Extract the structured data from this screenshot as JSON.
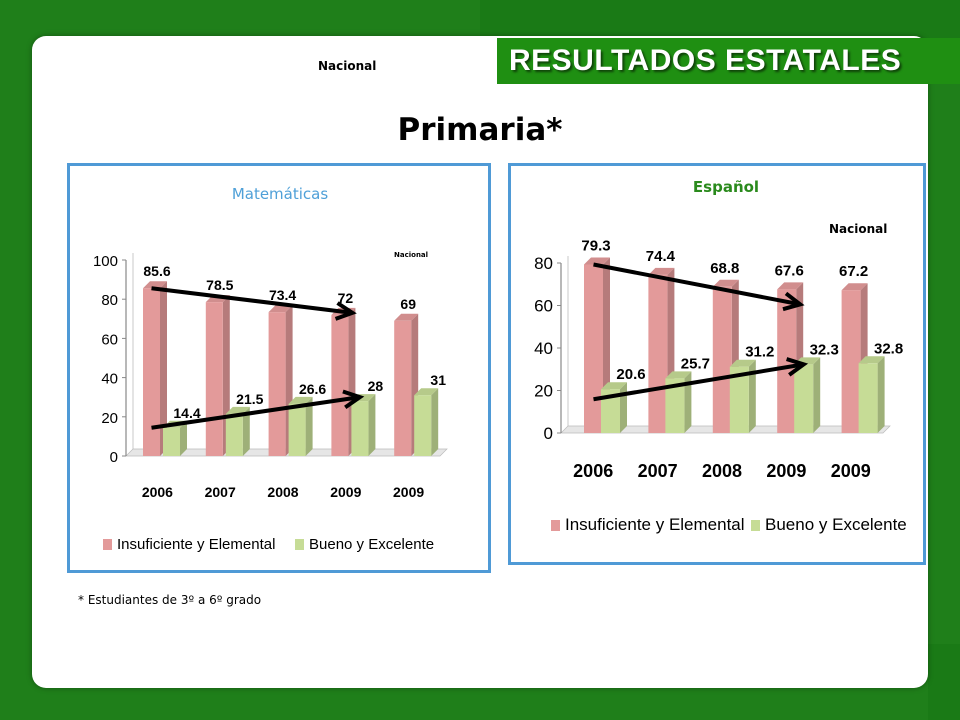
{
  "header": {
    "banner": "RESULTADOS ESTATALES",
    "nacional_label": "Nacional",
    "title": "Primaria*"
  },
  "footnote": "* Estudiantes de 3º a 6º grado",
  "colors": {
    "red": "#e39a9a",
    "green": "#c6dc96",
    "border": "#4f9ad6",
    "brand": "#1f8f12"
  },
  "chart_data": [
    {
      "type": "bar",
      "title": "Matemáticas",
      "annotation": "Nacional",
      "categories": [
        "2006",
        "2007",
        "2008",
        "2009",
        "2009"
      ],
      "series": [
        {
          "name": "Insuficiente y Elemental",
          "values": [
            85.6,
            78.5,
            73.4,
            72,
            69
          ]
        },
        {
          "name": "Bueno y Excelente",
          "values": [
            14.4,
            21.5,
            26.6,
            28,
            31
          ]
        }
      ],
      "yticks": [
        "0",
        "20",
        "40",
        "60",
        "80",
        "100"
      ],
      "ylim": [
        0,
        100
      ],
      "legend_position": "bottom"
    },
    {
      "type": "bar",
      "title": "Español",
      "annotation": "Nacional",
      "categories": [
        "2006",
        "2007",
        "2008",
        "2009",
        "2009"
      ],
      "series": [
        {
          "name": "Insuficiente y Elemental",
          "values": [
            79.3,
            74.4,
            68.8,
            67.6,
            67.2
          ]
        },
        {
          "name": "Bueno y Excelente",
          "values": [
            20.6,
            25.7,
            31.2,
            32.3,
            32.8
          ]
        }
      ],
      "yticks": [
        "0",
        "20",
        "40",
        "60",
        "80"
      ],
      "ylim": [
        0,
        80
      ],
      "legend_position": "bottom"
    }
  ]
}
